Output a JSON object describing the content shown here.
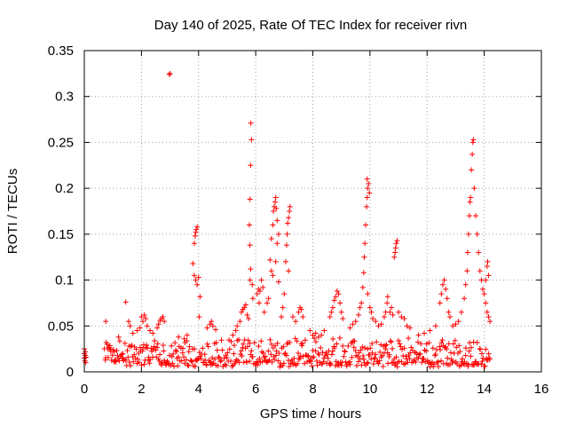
{
  "chart_data": {
    "type": "scatter",
    "title": "Day 140 of 2025, Rate Of TEC Index for receiver rivn",
    "xlabel": "GPS time / hours",
    "ylabel": "ROTI / TECUs",
    "xlim": [
      0,
      16
    ],
    "ylim": [
      0,
      0.35
    ],
    "grid": true,
    "marker": "+",
    "color": "#ff0000",
    "x_ticks": [
      0,
      2,
      4,
      6,
      8,
      10,
      12,
      14,
      16
    ],
    "x_tick_labels": [
      "0",
      "2",
      "4",
      "6",
      "8",
      "10",
      "12",
      "14",
      "16"
    ],
    "y_ticks": [
      0,
      0.05,
      0.1,
      0.15,
      0.2,
      0.25,
      0.3,
      0.35
    ],
    "y_tick_labels": [
      "0",
      "0.05",
      "0.1",
      "0.15",
      "0.2",
      "0.25",
      "0.3",
      "0.35"
    ],
    "series": [
      {
        "name": "ROTI",
        "background_band": {
          "x_range": [
            0.7,
            14.2
          ],
          "typical_min": 0.005,
          "typical_max": 0.035,
          "gap": [
            0.15,
            0.7
          ]
        },
        "points": [
          [
            0.0,
            0.015
          ],
          [
            0.0,
            0.02
          ],
          [
            0.0,
            0.025
          ],
          [
            0.02,
            0.012
          ],
          [
            0.03,
            0.018
          ],
          [
            0.05,
            0.01
          ],
          [
            0.04,
            0.022
          ],
          [
            0.06,
            0.016
          ],
          [
            0.75,
            0.055
          ],
          [
            0.8,
            0.03
          ],
          [
            0.9,
            0.025
          ],
          [
            1.05,
            0.022
          ],
          [
            1.2,
            0.038
          ],
          [
            1.45,
            0.076
          ],
          [
            1.55,
            0.055
          ],
          [
            1.6,
            0.05
          ],
          [
            1.7,
            0.042
          ],
          [
            1.85,
            0.045
          ],
          [
            1.95,
            0.048
          ],
          [
            2.0,
            0.06
          ],
          [
            2.05,
            0.055
          ],
          [
            2.1,
            0.062
          ],
          [
            2.15,
            0.058
          ],
          [
            2.2,
            0.05
          ],
          [
            2.3,
            0.045
          ],
          [
            2.4,
            0.042
          ],
          [
            2.55,
            0.048
          ],
          [
            2.6,
            0.052
          ],
          [
            2.65,
            0.056
          ],
          [
            2.7,
            0.058
          ],
          [
            2.75,
            0.06
          ],
          [
            2.8,
            0.055
          ],
          [
            2.98,
            0.324
          ],
          [
            3.0,
            0.325
          ],
          [
            3.3,
            0.038
          ],
          [
            3.5,
            0.036
          ],
          [
            3.6,
            0.04
          ],
          [
            3.8,
            0.118
          ],
          [
            3.85,
            0.14
          ],
          [
            3.88,
            0.148
          ],
          [
            3.9,
            0.152
          ],
          [
            3.92,
            0.155
          ],
          [
            3.95,
            0.158
          ],
          [
            3.85,
            0.105
          ],
          [
            3.9,
            0.1
          ],
          [
            3.95,
            0.095
          ],
          [
            4.0,
            0.103
          ],
          [
            4.05,
            0.082
          ],
          [
            4.02,
            0.06
          ],
          [
            4.3,
            0.048
          ],
          [
            4.4,
            0.052
          ],
          [
            4.45,
            0.055
          ],
          [
            4.5,
            0.05
          ],
          [
            4.6,
            0.046
          ],
          [
            5.2,
            0.04
          ],
          [
            5.3,
            0.045
          ],
          [
            5.35,
            0.05
          ],
          [
            5.45,
            0.055
          ],
          [
            5.5,
            0.065
          ],
          [
            5.55,
            0.068
          ],
          [
            5.6,
            0.07
          ],
          [
            5.65,
            0.073
          ],
          [
            5.7,
            0.062
          ],
          [
            5.75,
            0.058
          ],
          [
            5.8,
            0.1
          ],
          [
            5.82,
            0.112
          ],
          [
            5.8,
            0.138
          ],
          [
            5.78,
            0.16
          ],
          [
            5.8,
            0.188
          ],
          [
            5.82,
            0.225
          ],
          [
            5.85,
            0.253
          ],
          [
            5.83,
            0.271
          ],
          [
            5.88,
            0.095
          ],
          [
            5.9,
            0.08
          ],
          [
            6.05,
            0.085
          ],
          [
            6.1,
            0.09
          ],
          [
            6.12,
            0.075
          ],
          [
            6.15,
            0.088
          ],
          [
            6.2,
            0.1
          ],
          [
            6.25,
            0.092
          ],
          [
            6.3,
            0.065
          ],
          [
            6.4,
            0.075
          ],
          [
            6.45,
            0.08
          ],
          [
            6.5,
            0.122
          ],
          [
            6.55,
            0.145
          ],
          [
            6.6,
            0.16
          ],
          [
            6.62,
            0.175
          ],
          [
            6.65,
            0.18
          ],
          [
            6.68,
            0.185
          ],
          [
            6.7,
            0.19
          ],
          [
            6.72,
            0.178
          ],
          [
            6.75,
            0.165
          ],
          [
            6.55,
            0.11
          ],
          [
            6.6,
            0.105
          ],
          [
            6.7,
            0.12
          ],
          [
            6.75,
            0.14
          ],
          [
            6.8,
            0.15
          ],
          [
            6.8,
            0.098
          ],
          [
            6.9,
            0.06
          ],
          [
            6.95,
            0.07
          ],
          [
            7.0,
            0.085
          ],
          [
            7.05,
            0.12
          ],
          [
            7.08,
            0.138
          ],
          [
            7.1,
            0.15
          ],
          [
            7.12,
            0.162
          ],
          [
            7.15,
            0.168
          ],
          [
            7.18,
            0.175
          ],
          [
            7.2,
            0.18
          ],
          [
            7.15,
            0.11
          ],
          [
            7.3,
            0.06
          ],
          [
            7.4,
            0.055
          ],
          [
            7.5,
            0.065
          ],
          [
            7.55,
            0.07
          ],
          [
            7.6,
            0.068
          ],
          [
            7.65,
            0.06
          ],
          [
            7.9,
            0.045
          ],
          [
            8.0,
            0.04
          ],
          [
            8.1,
            0.042
          ],
          [
            8.2,
            0.038
          ],
          [
            8.3,
            0.04
          ],
          [
            8.4,
            0.045
          ],
          [
            8.6,
            0.06
          ],
          [
            8.65,
            0.065
          ],
          [
            8.7,
            0.07
          ],
          [
            8.75,
            0.078
          ],
          [
            8.8,
            0.082
          ],
          [
            8.85,
            0.088
          ],
          [
            8.9,
            0.085
          ],
          [
            8.95,
            0.075
          ],
          [
            9.0,
            0.065
          ],
          [
            9.05,
            0.058
          ],
          [
            9.3,
            0.048
          ],
          [
            9.4,
            0.052
          ],
          [
            9.5,
            0.055
          ],
          [
            9.6,
            0.062
          ],
          [
            9.65,
            0.07
          ],
          [
            9.7,
            0.075
          ],
          [
            9.75,
            0.092
          ],
          [
            9.78,
            0.108
          ],
          [
            9.8,
            0.125
          ],
          [
            9.82,
            0.14
          ],
          [
            9.85,
            0.16
          ],
          [
            9.88,
            0.18
          ],
          [
            9.9,
            0.19
          ],
          [
            9.92,
            0.2
          ],
          [
            9.95,
            0.205
          ],
          [
            9.9,
            0.21
          ],
          [
            9.98,
            0.195
          ],
          [
            9.92,
            0.085
          ],
          [
            10.0,
            0.07
          ],
          [
            10.05,
            0.065
          ],
          [
            10.1,
            0.058
          ],
          [
            10.2,
            0.055
          ],
          [
            10.3,
            0.05
          ],
          [
            10.4,
            0.052
          ],
          [
            10.5,
            0.06
          ],
          [
            10.55,
            0.065
          ],
          [
            10.6,
            0.075
          ],
          [
            10.62,
            0.082
          ],
          [
            10.7,
            0.065
          ],
          [
            10.75,
            0.07
          ],
          [
            10.8,
            0.062
          ],
          [
            10.85,
            0.125
          ],
          [
            10.88,
            0.13
          ],
          [
            10.9,
            0.135
          ],
          [
            10.92,
            0.14
          ],
          [
            10.95,
            0.143
          ],
          [
            11.0,
            0.065
          ],
          [
            11.1,
            0.06
          ],
          [
            11.2,
            0.058
          ],
          [
            11.3,
            0.05
          ],
          [
            11.4,
            0.048
          ],
          [
            11.7,
            0.04
          ],
          [
            11.9,
            0.042
          ],
          [
            12.1,
            0.045
          ],
          [
            12.3,
            0.05
          ],
          [
            12.45,
            0.075
          ],
          [
            12.5,
            0.085
          ],
          [
            12.55,
            0.095
          ],
          [
            12.6,
            0.1
          ],
          [
            12.65,
            0.09
          ],
          [
            12.7,
            0.08
          ],
          [
            12.75,
            0.065
          ],
          [
            12.8,
            0.06
          ],
          [
            12.9,
            0.05
          ],
          [
            13.0,
            0.052
          ],
          [
            13.1,
            0.055
          ],
          [
            13.2,
            0.065
          ],
          [
            13.3,
            0.08
          ],
          [
            13.35,
            0.095
          ],
          [
            13.4,
            0.11
          ],
          [
            13.42,
            0.13
          ],
          [
            13.45,
            0.15
          ],
          [
            13.48,
            0.17
          ],
          [
            13.5,
            0.185
          ],
          [
            13.52,
            0.19
          ],
          [
            13.55,
            0.22
          ],
          [
            13.58,
            0.237
          ],
          [
            13.6,
            0.25
          ],
          [
            13.62,
            0.253
          ],
          [
            13.65,
            0.2
          ],
          [
            13.7,
            0.17
          ],
          [
            13.75,
            0.15
          ],
          [
            13.8,
            0.13
          ],
          [
            13.85,
            0.11
          ],
          [
            13.9,
            0.1
          ],
          [
            13.95,
            0.09
          ],
          [
            14.0,
            0.085
          ],
          [
            14.05,
            0.1
          ],
          [
            14.1,
            0.115
          ],
          [
            14.12,
            0.12
          ],
          [
            14.15,
            0.105
          ],
          [
            14.05,
            0.075
          ],
          [
            14.1,
            0.065
          ],
          [
            14.15,
            0.06
          ],
          [
            14.2,
            0.055
          ]
        ]
      }
    ]
  }
}
